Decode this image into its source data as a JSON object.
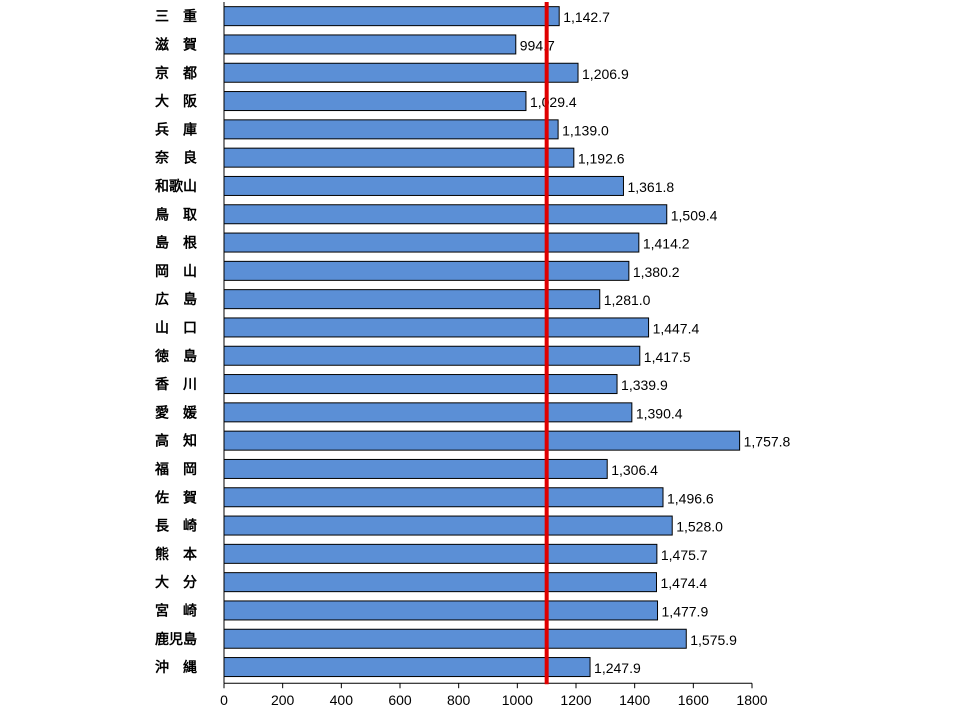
{
  "chart_data": {
    "type": "bar",
    "orientation": "horizontal",
    "categories": [
      "三　重",
      "滋　賀",
      "京　都",
      "大　阪",
      "兵　庫",
      "奈　良",
      "和歌山",
      "鳥　取",
      "島　根",
      "岡　山",
      "広　島",
      "山　口",
      "徳　島",
      "香　川",
      "愛　媛",
      "高　知",
      "福　岡",
      "佐　賀",
      "長　崎",
      "熊　本",
      "大　分",
      "宮　崎",
      "鹿児島",
      "沖　縄"
    ],
    "values": [
      1142.7,
      994.7,
      1206.9,
      1029.4,
      1139.0,
      1192.6,
      1361.8,
      1509.4,
      1414.2,
      1380.2,
      1281.0,
      1447.4,
      1417.5,
      1339.9,
      1390.4,
      1757.8,
      1306.4,
      1496.6,
      1528.0,
      1475.7,
      1474.4,
      1477.9,
      1575.9,
      1247.9
    ],
    "value_labels": [
      "1,142.7",
      "994.7",
      "1,206.9",
      "1,029.4",
      "1,139.0",
      "1,192.6",
      "1,361.8",
      "1,509.4",
      "1,414.2",
      "1,380.2",
      "1,281.0",
      "1,447.4",
      "1,417.5",
      "1,339.9",
      "1,390.4",
      "1,757.8",
      "1,306.4",
      "1,496.6",
      "1,528.0",
      "1,475.7",
      "1,474.4",
      "1,477.9",
      "1,575.9",
      "1,247.9"
    ],
    "xlim": [
      0,
      1800
    ],
    "xticks": [
      0,
      200,
      400,
      600,
      800,
      1000,
      1200,
      1400,
      1600,
      1800
    ],
    "reference_line": 1100,
    "colors": {
      "bar": "#5b8fd6",
      "bar_edge": "#000000",
      "reference": "#e00000"
    },
    "title": "",
    "xlabel": "",
    "ylabel": ""
  }
}
